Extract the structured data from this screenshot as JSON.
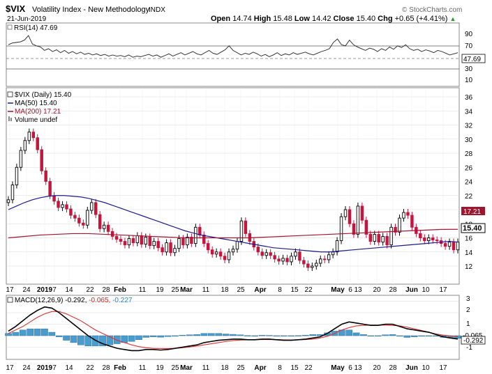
{
  "header": {
    "symbol": "$VIX",
    "name": "Volatility Index - New Methodology",
    "exchange": "INDX",
    "date": "21-Jun-2019",
    "watermark": "© StockCharts.com",
    "open_label": "Open",
    "open": "14.74",
    "high_label": "High",
    "high": "15.48",
    "low_label": "Low",
    "low": "14.42",
    "close_label": "Close",
    "close": "15.40",
    "chg_label": "Chg",
    "chg": "+0.65 (+4.41%)",
    "chg_arrow": "▲"
  },
  "rsi_panel": {
    "label": "RSI(14) 47.69",
    "ticks": [
      "90",
      "70",
      "50",
      "30",
      "10"
    ],
    "value_tag": "47.69"
  },
  "price_panel": {
    "legend": [
      "$VIX (Daily) 15.40",
      "MA(50) 15.40",
      "MA(200) 17.21",
      "Volume undef"
    ],
    "y_ticks": [
      "36",
      "34",
      "32",
      "30",
      "28",
      "26",
      "24",
      "22",
      "20",
      "18",
      "16",
      "14",
      "12"
    ],
    "ma200_tag": "17.21",
    "close_tag": "15.40"
  },
  "macd_panel": {
    "label_main": "MACD(12,26,9) -0.292,",
    "label_signal": " -0.065,",
    "label_hist": " -0.227",
    "ticks": [
      "3",
      "2",
      "1",
      "0",
      "-1"
    ],
    "value_tags": [
      "-0.065",
      "-0.292"
    ]
  },
  "x_axis": {
    "labels": [
      "17",
      "24",
      "2019",
      "7",
      "14",
      "22",
      "28",
      "Feb",
      "11",
      "19",
      "25",
      "Mar",
      "11",
      "18",
      "25",
      "Apr",
      "8",
      "15",
      "22",
      "May",
      "6",
      "13",
      "20",
      "28",
      "Jun",
      "10",
      "17"
    ],
    "bold": [
      "2019",
      "Feb",
      "Mar",
      "Apr",
      "May",
      "Jun"
    ]
  },
  "colors": {
    "up": "#000000",
    "down": "#c8143c",
    "ma50": "#1a1a8c",
    "ma200": "#a0142e",
    "macd": "#000000",
    "signal": "#e03030",
    "hist": "#4a9ccf",
    "grid": "#d8d8d8"
  },
  "chart_data": [
    {
      "type": "line",
      "title": "RSI(14) 47.69",
      "ylim": [
        0,
        100
      ],
      "series": [
        {
          "name": "RSI(14)",
          "values": [
            62,
            65,
            66,
            67,
            70,
            78,
            63,
            60,
            58,
            52,
            55,
            50,
            53,
            48,
            52,
            47,
            50,
            46,
            49,
            45,
            47,
            44,
            46,
            43,
            45,
            42,
            44,
            42,
            43,
            41,
            44,
            40,
            42,
            41,
            43,
            45,
            42,
            44,
            40,
            43,
            46,
            42,
            45,
            48,
            44,
            47,
            50,
            46,
            44,
            48,
            52,
            47,
            45,
            49,
            53,
            60,
            52,
            48,
            44,
            47,
            45,
            49,
            46,
            42,
            45,
            41,
            44,
            48,
            43,
            46,
            44,
            48,
            45,
            47,
            49,
            46,
            44,
            47,
            50,
            52,
            55,
            66,
            72,
            62,
            60,
            70,
            62,
            58,
            55,
            52,
            56,
            54,
            50,
            55,
            52,
            58,
            54,
            60,
            57,
            62,
            55,
            52,
            54,
            50,
            53,
            51,
            48,
            52,
            50,
            47,
            44,
            46,
            48
          ]
        }
      ]
    },
    {
      "type": "line",
      "title": "$VIX (Daily) 15.40",
      "ylim": [
        11,
        37
      ],
      "series": [
        {
          "name": "$VIX (Daily) 15.40",
          "values": [
            21.4,
            23.5,
            26.0,
            28.4,
            29.8,
            31.0,
            30.2,
            28.5,
            25.5,
            24.0,
            22.0,
            21.2,
            20.3,
            20.7,
            20.1,
            19.2,
            18.8,
            18.1,
            17.8,
            19.9,
            21.0,
            19.3,
            17.3,
            17.8,
            16.9,
            16.2,
            15.8,
            15.5,
            15.0,
            15.9,
            15.3,
            16.3,
            15.1,
            16.1,
            14.9,
            15.5,
            14.6,
            14.0,
            15.3,
            13.9,
            14.5,
            15.9,
            15.0,
            16.1,
            15.2,
            17.5,
            16.4,
            15.2,
            14.3,
            13.7,
            14.0,
            13.4,
            12.9,
            14.0,
            14.4,
            15.5,
            18.4,
            16.6,
            15.5,
            14.7,
            14.0,
            13.5,
            13.9,
            13.5,
            13.0,
            12.7,
            13.1,
            12.6,
            13.4,
            14.0,
            12.8,
            12.3,
            11.8,
            12.0,
            12.4,
            13.0,
            12.9,
            13.6,
            14.0,
            15.6,
            19.0,
            20.0,
            18.0,
            16.5,
            20.5,
            18.5,
            16.5,
            15.5,
            16.5,
            15.4,
            16.2,
            15.0,
            17.5,
            16.8,
            18.8,
            19.6,
            19.2,
            17.5,
            16.6,
            16.0,
            15.6,
            16.0,
            15.7,
            15.6,
            15.2,
            14.8,
            15.4,
            14.3,
            15.4
          ]
        },
        {
          "name": "MA(50) 15.40",
          "values": [
            20.0,
            20.5,
            21.0,
            21.4,
            21.7,
            21.9,
            22.0,
            22.0,
            21.9,
            21.8,
            21.6,
            21.3,
            21.0,
            20.6,
            20.2,
            19.8,
            19.4,
            19.0,
            18.6,
            18.2,
            17.8,
            17.4,
            17.0,
            16.7,
            16.4,
            16.2,
            16.0,
            15.8,
            15.6,
            15.4,
            15.2,
            15.0,
            14.8,
            14.6,
            14.5,
            14.4,
            14.3,
            14.2,
            14.1,
            14.0,
            14.0,
            14.1,
            14.2,
            14.3,
            14.4,
            14.5,
            14.6,
            14.7,
            14.8,
            14.9,
            15.0,
            15.1,
            15.2,
            15.3,
            15.4,
            15.5,
            15.4
          ]
        },
        {
          "name": "MA(200) 17.21",
          "values": [
            16.0,
            16.2,
            16.4,
            16.5,
            16.6,
            16.6,
            16.5,
            16.4,
            16.3,
            16.2,
            16.1,
            16.0,
            16.0,
            16.0,
            16.0,
            16.0,
            16.1,
            16.2,
            16.3,
            16.4,
            16.5,
            16.6,
            16.7,
            16.8,
            16.9,
            17.0,
            17.1,
            17.2,
            17.21
          ]
        }
      ]
    },
    {
      "type": "line",
      "title": "MACD(12,26,9) -0.292, -0.065, -0.227",
      "ylim": [
        -1.6,
        3.2
      ],
      "series": [
        {
          "name": "MACD(12,26,9)",
          "values": [
            0.4,
            0.8,
            1.3,
            1.8,
            2.2,
            2.5,
            2.4,
            2.0,
            1.5,
            1.0,
            0.5,
            0.0,
            -0.4,
            -0.7,
            -0.9,
            -1.1,
            -1.2,
            -1.3,
            -1.3,
            -1.2,
            -1.2,
            -1.25,
            -1.2,
            -1.1,
            -1.0,
            -0.9,
            -0.8,
            -0.6,
            -0.5,
            -0.4,
            -0.35,
            -0.3,
            -0.3,
            -0.35,
            -0.35,
            -0.3,
            -0.3,
            -0.35,
            -0.4,
            -0.4,
            -0.35,
            -0.3,
            -0.2,
            -0.1,
            0.2,
            0.6,
            1.0,
            1.2,
            1.1,
            1.0,
            0.9,
            0.9,
            1.0,
            1.0,
            0.8,
            0.6,
            0.5,
            0.4,
            0.3,
            0.1,
            -0.1,
            -0.2,
            -0.29
          ]
        },
        {
          "name": "Signal",
          "values": [
            0.2,
            0.5,
            0.8,
            1.2,
            1.6,
            1.9,
            2.1,
            2.1,
            1.9,
            1.6,
            1.3,
            0.9,
            0.5,
            0.2,
            -0.1,
            -0.4,
            -0.6,
            -0.8,
            -0.95,
            -1.05,
            -1.1,
            -1.12,
            -1.12,
            -1.1,
            -1.05,
            -0.98,
            -0.9,
            -0.8,
            -0.7,
            -0.6,
            -0.5,
            -0.42,
            -0.38,
            -0.36,
            -0.35,
            -0.34,
            -0.33,
            -0.34,
            -0.36,
            -0.37,
            -0.36,
            -0.34,
            -0.3,
            -0.2,
            -0.05,
            0.2,
            0.5,
            0.7,
            0.85,
            0.9,
            0.92,
            0.92,
            0.92,
            0.9,
            0.85,
            0.75,
            0.6,
            0.45,
            0.3,
            0.15,
            0.05,
            -0.02,
            -0.07
          ]
        },
        {
          "name": "Histogram",
          "values": [
            0.2,
            0.3,
            0.5,
            0.6,
            0.6,
            0.6,
            0.3,
            -0.1,
            -0.4,
            -0.6,
            -0.8,
            -0.9,
            -0.9,
            -0.9,
            -0.8,
            -0.7,
            -0.6,
            -0.5,
            -0.35,
            -0.15,
            -0.1,
            -0.13,
            -0.08,
            0.0,
            0.05,
            0.08,
            0.1,
            0.2,
            0.2,
            0.2,
            0.15,
            0.12,
            0.08,
            0.01,
            0.0,
            0.04,
            0.03,
            -0.01,
            -0.04,
            -0.03,
            0.01,
            0.04,
            0.1,
            0.1,
            0.25,
            0.4,
            0.5,
            0.5,
            0.25,
            0.1,
            -0.02,
            -0.02,
            0.08,
            0.1,
            -0.05,
            -0.15,
            -0.1,
            -0.05,
            0.0,
            -0.05,
            -0.15,
            -0.18,
            -0.23
          ]
        }
      ]
    }
  ]
}
